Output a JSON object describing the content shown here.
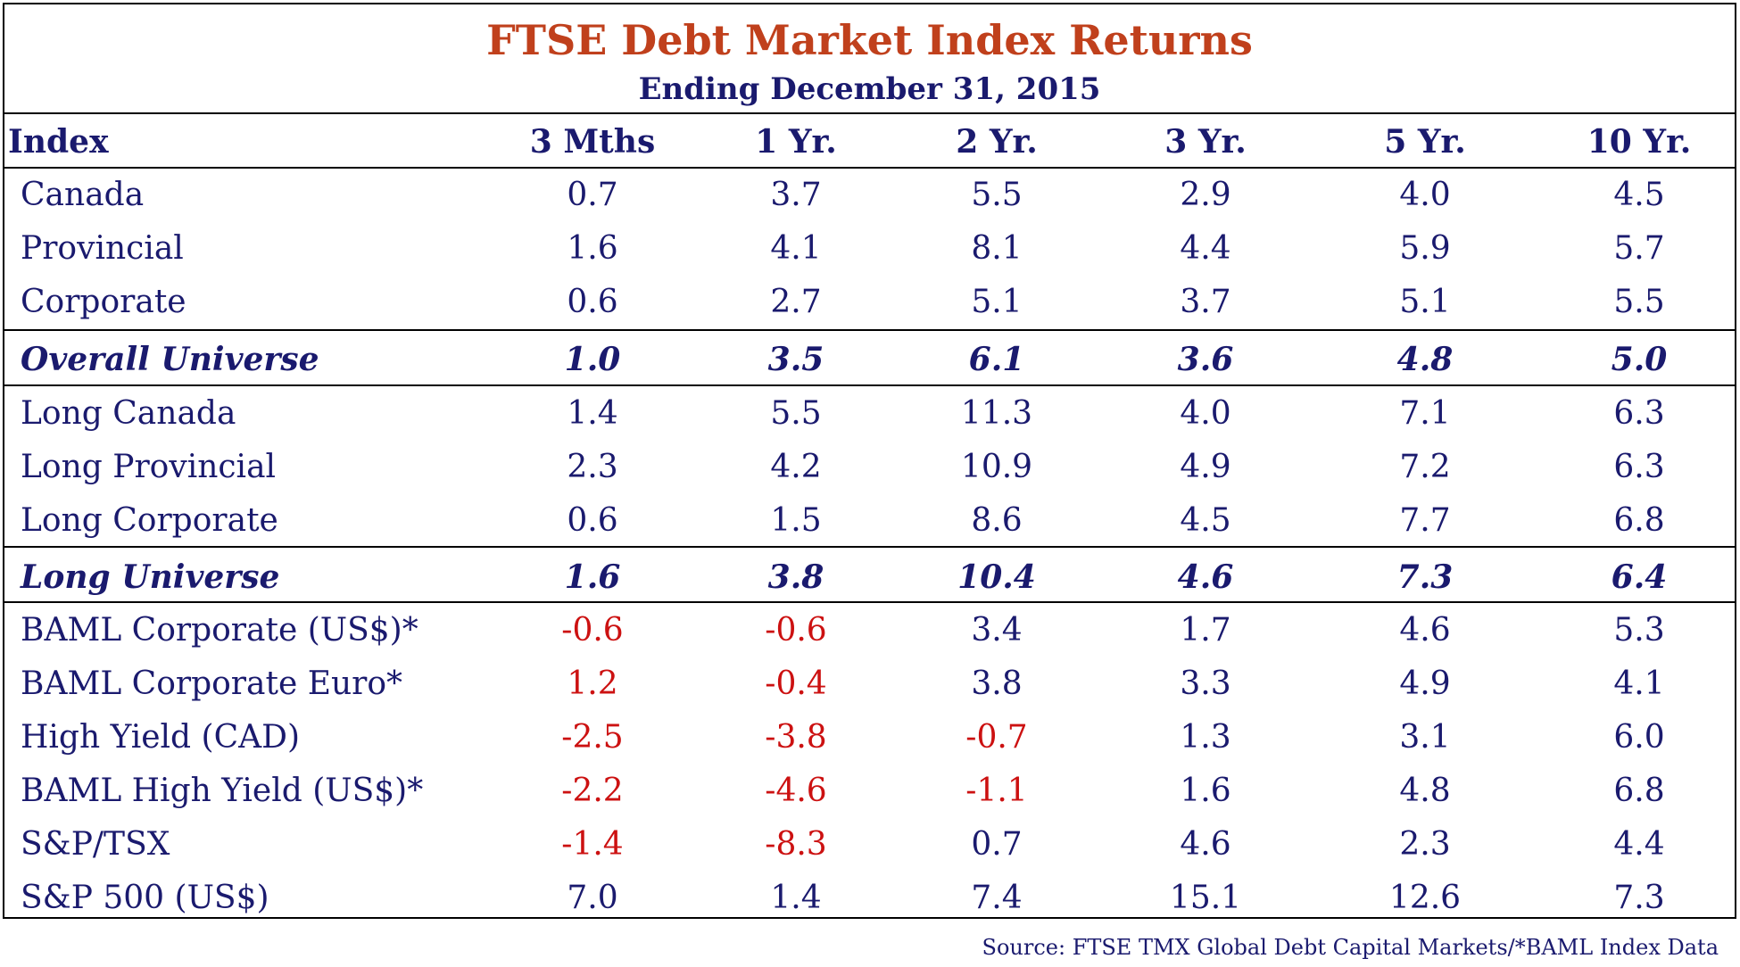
{
  "title": "FTSE Debt Market Index Returns",
  "subtitle": "Ending December 31, 2015",
  "header": [
    "Index",
    "3 Mths",
    "1 Yr.",
    "2 Yr.",
    "3 Yr.",
    "5 Yr.",
    "10 Yr."
  ],
  "rows": [
    {
      "label": "Canada",
      "values": [
        "0.7",
        "3.7",
        "5.5",
        "2.9",
        "4.0",
        "4.5"
      ],
      "summary": false
    },
    {
      "label": "Provincial",
      "values": [
        "1.6",
        "4.1",
        "8.1",
        "4.4",
        "5.9",
        "5.7"
      ],
      "summary": false
    },
    {
      "label": "Corporate",
      "values": [
        "0.6",
        "2.7",
        "5.1",
        "3.7",
        "5.1",
        "5.5"
      ],
      "summary": false
    },
    {
      "label": "Overall Universe",
      "values": [
        "1.0",
        "3.5",
        "6.1",
        "3.6",
        "4.8",
        "5.0"
      ],
      "summary": true
    },
    {
      "label": "Long Canada",
      "values": [
        "1.4",
        "5.5",
        "11.3",
        "4.0",
        "7.1",
        "6.3"
      ],
      "summary": false
    },
    {
      "label": "Long Provincial",
      "values": [
        "2.3",
        "4.2",
        "10.9",
        "4.9",
        "7.2",
        "6.3"
      ],
      "summary": false
    },
    {
      "label": "Long Corporate",
      "values": [
        "0.6",
        "1.5",
        "8.6",
        "4.5",
        "7.7",
        "6.8"
      ],
      "summary": false
    },
    {
      "label": "Long Universe",
      "values": [
        "1.6",
        "3.8",
        "10.4",
        "4.6",
        "7.3",
        "6.4"
      ],
      "summary": true
    },
    {
      "label": "BAML Corporate (US$)*",
      "values": [
        "-0.6",
        "-0.6",
        "3.4",
        "1.7",
        "4.6",
        "5.3"
      ],
      "summary": false
    },
    {
      "label": "BAML Corporate Euro*",
      "values": [
        "1.2",
        "-0.4",
        "3.8",
        "3.3",
        "4.9",
        "4.1"
      ],
      "summary": false,
      "negative_style": [
        true,
        true,
        false,
        false,
        false,
        false
      ]
    },
    {
      "label": "High Yield (CAD)",
      "values": [
        "-2.5",
        "-3.8",
        "-0.7",
        "1.3",
        "3.1",
        "6.0"
      ],
      "summary": false
    },
    {
      "label": "BAML High Yield (US$)*",
      "values": [
        "-2.2",
        "-4.6",
        "-1.1",
        "1.6",
        "4.8",
        "6.8"
      ],
      "summary": false
    },
    {
      "label": "S&P/TSX",
      "values": [
        "-1.4",
        "-8.3",
        "0.7",
        "4.6",
        "2.3",
        "4.4"
      ],
      "summary": false
    },
    {
      "label": "S&P 500 (US$)",
      "values": [
        "7.0",
        "1.4",
        "7.4",
        "15.1",
        "12.6",
        "7.3"
      ],
      "summary": false
    }
  ],
  "colors": {
    "title": "#c0401c",
    "text": "#1a1a6e",
    "negative": "#cc1111"
  },
  "source": "Source: FTSE TMX Global Debt Capital Markets/*BAML Index Data"
}
